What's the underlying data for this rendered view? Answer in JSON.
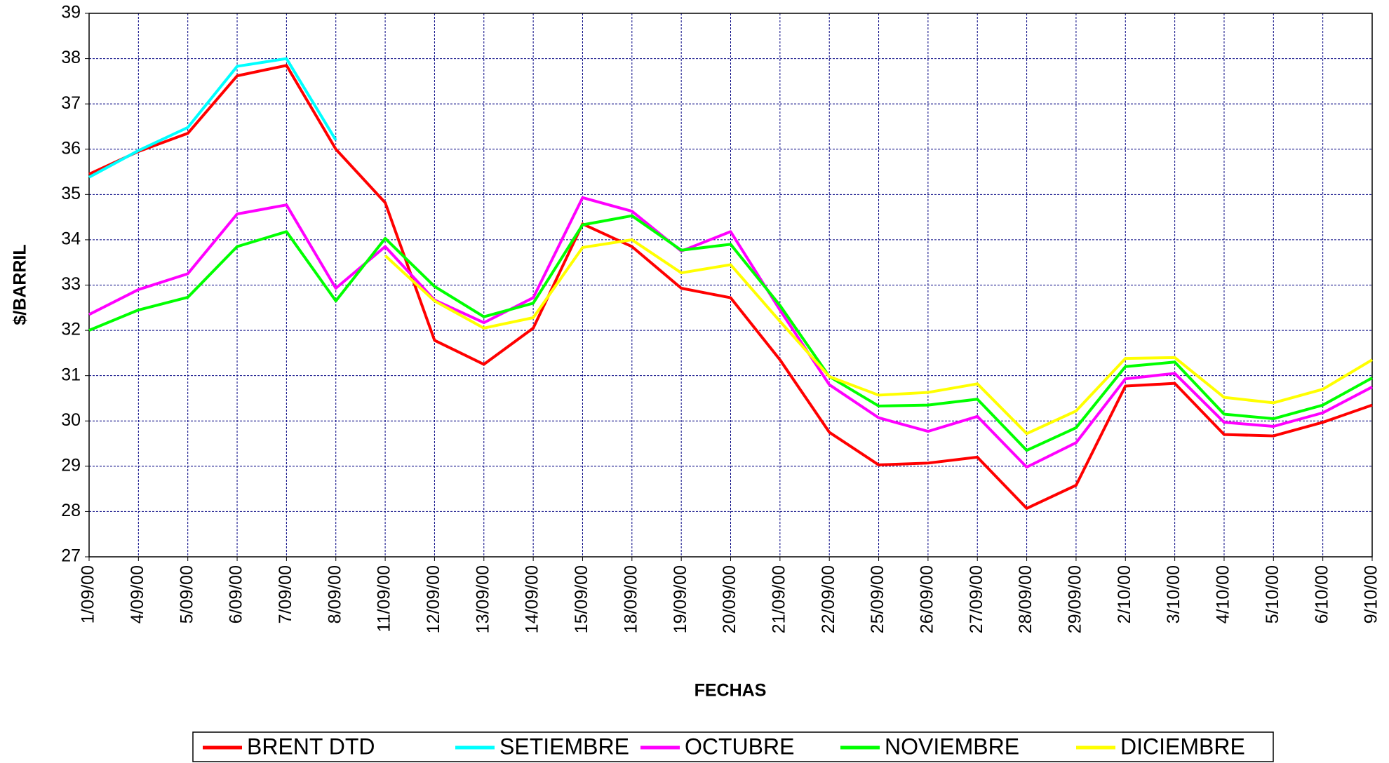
{
  "chart_data": {
    "type": "line",
    "xlabel": "FECHAS",
    "ylabel": "$/BARRIL",
    "categories": [
      "1/09/00",
      "4/09/00",
      "5/09/00",
      "6/09/00",
      "7/09/00",
      "8/09/00",
      "11/09/00",
      "12/09/00",
      "13/09/00",
      "14/09/00",
      "15/09/00",
      "18/09/00",
      "19/09/00",
      "20/09/00",
      "21/09/00",
      "22/09/00",
      "25/09/00",
      "26/09/00",
      "27/09/00",
      "28/09/00",
      "29/09/00",
      "2/10/00",
      "3/10/00",
      "4/10/00",
      "5/10/00",
      "6/10/00",
      "9/10/00"
    ],
    "series": [
      {
        "name": "BRENT DTD",
        "color": "#ff0000",
        "values": [
          35.45,
          35.95,
          36.35,
          37.62,
          37.85,
          36.0,
          34.82,
          31.78,
          31.25,
          32.05,
          34.35,
          33.85,
          32.93,
          32.72,
          31.35,
          29.75,
          29.03,
          29.07,
          29.2,
          28.07,
          28.58,
          30.77,
          30.83,
          29.7,
          29.67,
          29.97,
          30.35
        ]
      },
      {
        "name": "SETIEMBRE",
        "color": "#00ffff",
        "values": [
          35.38,
          35.97,
          36.48,
          37.83,
          38.0,
          36.2,
          null,
          null,
          null,
          null,
          null,
          null,
          null,
          null,
          null,
          null,
          null,
          null,
          null,
          null,
          null,
          null,
          null,
          null,
          null,
          null,
          null
        ]
      },
      {
        "name": "OCTUBRE",
        "color": "#ff00ff",
        "values": [
          32.35,
          32.9,
          33.25,
          34.57,
          34.77,
          32.93,
          33.85,
          32.67,
          32.17,
          32.72,
          34.93,
          34.63,
          33.75,
          34.18,
          32.45,
          30.8,
          30.07,
          29.77,
          30.1,
          28.98,
          29.52,
          30.93,
          31.05,
          29.97,
          29.88,
          30.18,
          30.75
        ]
      },
      {
        "name": "NOVIEMBRE",
        "color": "#00ff00",
        "values": [
          32.0,
          32.45,
          32.73,
          33.85,
          34.18,
          32.65,
          34.03,
          32.97,
          32.3,
          32.6,
          34.33,
          34.53,
          33.77,
          33.9,
          32.55,
          30.98,
          30.33,
          30.35,
          30.48,
          29.35,
          29.85,
          31.2,
          31.3,
          30.15,
          30.05,
          30.35,
          30.95
        ]
      },
      {
        "name": "DICIEMBRE",
        "color": "#ffff00",
        "values": [
          null,
          null,
          null,
          null,
          null,
          null,
          33.65,
          32.65,
          32.05,
          32.28,
          33.83,
          34.0,
          33.27,
          33.45,
          32.2,
          30.98,
          30.57,
          30.63,
          30.82,
          29.72,
          30.22,
          31.38,
          31.4,
          30.52,
          30.4,
          30.7,
          31.35
        ]
      }
    ],
    "ylim": [
      27,
      39
    ],
    "yticks": [
      27,
      28,
      29,
      30,
      31,
      32,
      33,
      34,
      35,
      36,
      37,
      38,
      39
    ],
    "grid": true,
    "legend": "bottom"
  }
}
